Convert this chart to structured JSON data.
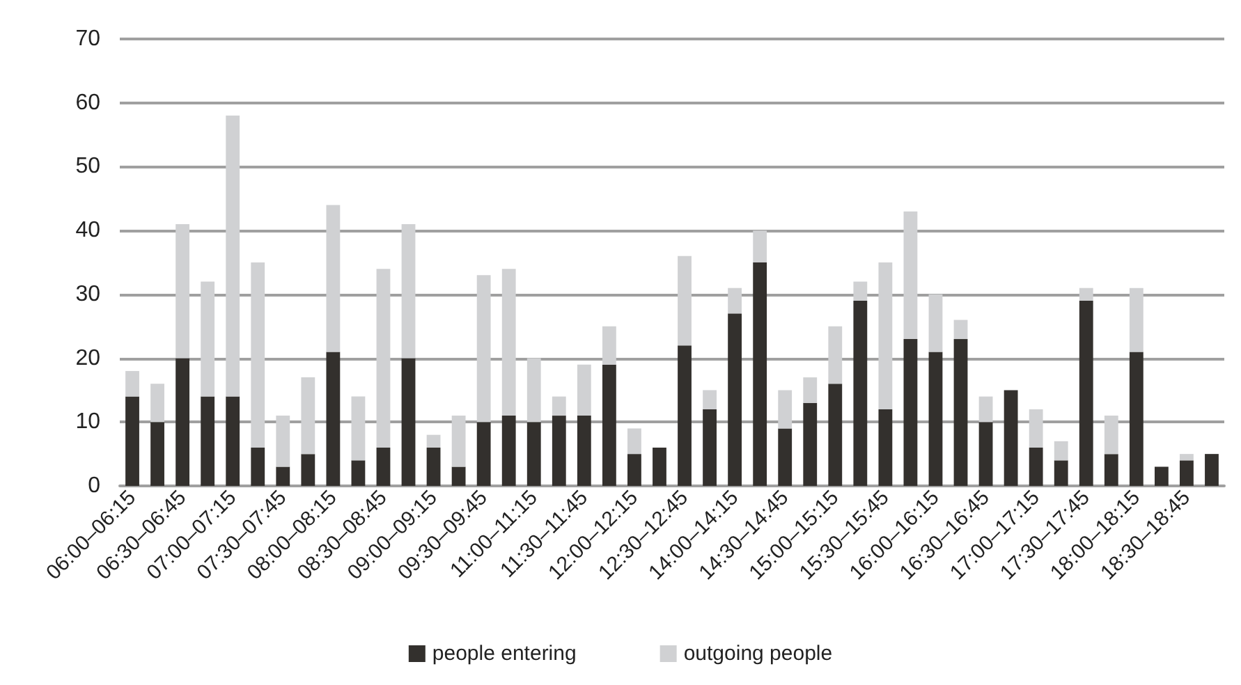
{
  "chart_data": {
    "type": "bar",
    "stacked": true,
    "categories": [
      "06:00–06:15",
      null,
      "06:30–06:45",
      null,
      "07:00–07:15",
      null,
      "07:30–07:45",
      null,
      "08:00–08:15",
      null,
      "08:30–08:45",
      null,
      "09:00–09:15",
      null,
      "09:30–09:45",
      null,
      "11:00–11:15",
      null,
      "11:30–11:45",
      null,
      "12:00–12:15",
      null,
      "12:30–12:45",
      null,
      "14:00–14:15",
      null,
      "14:30–14:45",
      null,
      "15:00–15:15",
      null,
      "15:30–15:45",
      null,
      "16:00–16:15",
      null,
      "16:30–16:45",
      null,
      "17:00–17:15",
      null,
      "17:30–17:45",
      null,
      "18:00–18:15",
      null,
      "18:30–18:45",
      null
    ],
    "series": [
      {
        "name": "people entering",
        "color": "#33302d",
        "values": [
          14,
          10,
          20,
          14,
          14,
          6,
          3,
          5,
          21,
          4,
          6,
          20,
          6,
          3,
          10,
          11,
          10,
          11,
          11,
          19,
          5,
          6,
          22,
          12,
          27,
          35,
          9,
          13,
          16,
          29,
          12,
          23,
          21,
          23,
          10,
          15,
          6,
          4,
          29,
          5,
          21,
          3,
          4,
          5
        ]
      },
      {
        "name": "outgoing people",
        "color": "#d0d1d3",
        "values": [
          4,
          6,
          21,
          18,
          44,
          29,
          8,
          12,
          23,
          10,
          28,
          21,
          2,
          8,
          23,
          23,
          10,
          3,
          8,
          6,
          4,
          0,
          14,
          3,
          4,
          5,
          6,
          4,
          9,
          3,
          23,
          20,
          9,
          3,
          4,
          0,
          6,
          3,
          2,
          6,
          10,
          0,
          1,
          0
        ]
      }
    ],
    "ylim": [
      0,
      70
    ],
    "yticks": [
      0,
      10,
      20,
      30,
      40,
      50,
      60,
      70
    ],
    "grid": "y",
    "legend": "bottom"
  }
}
